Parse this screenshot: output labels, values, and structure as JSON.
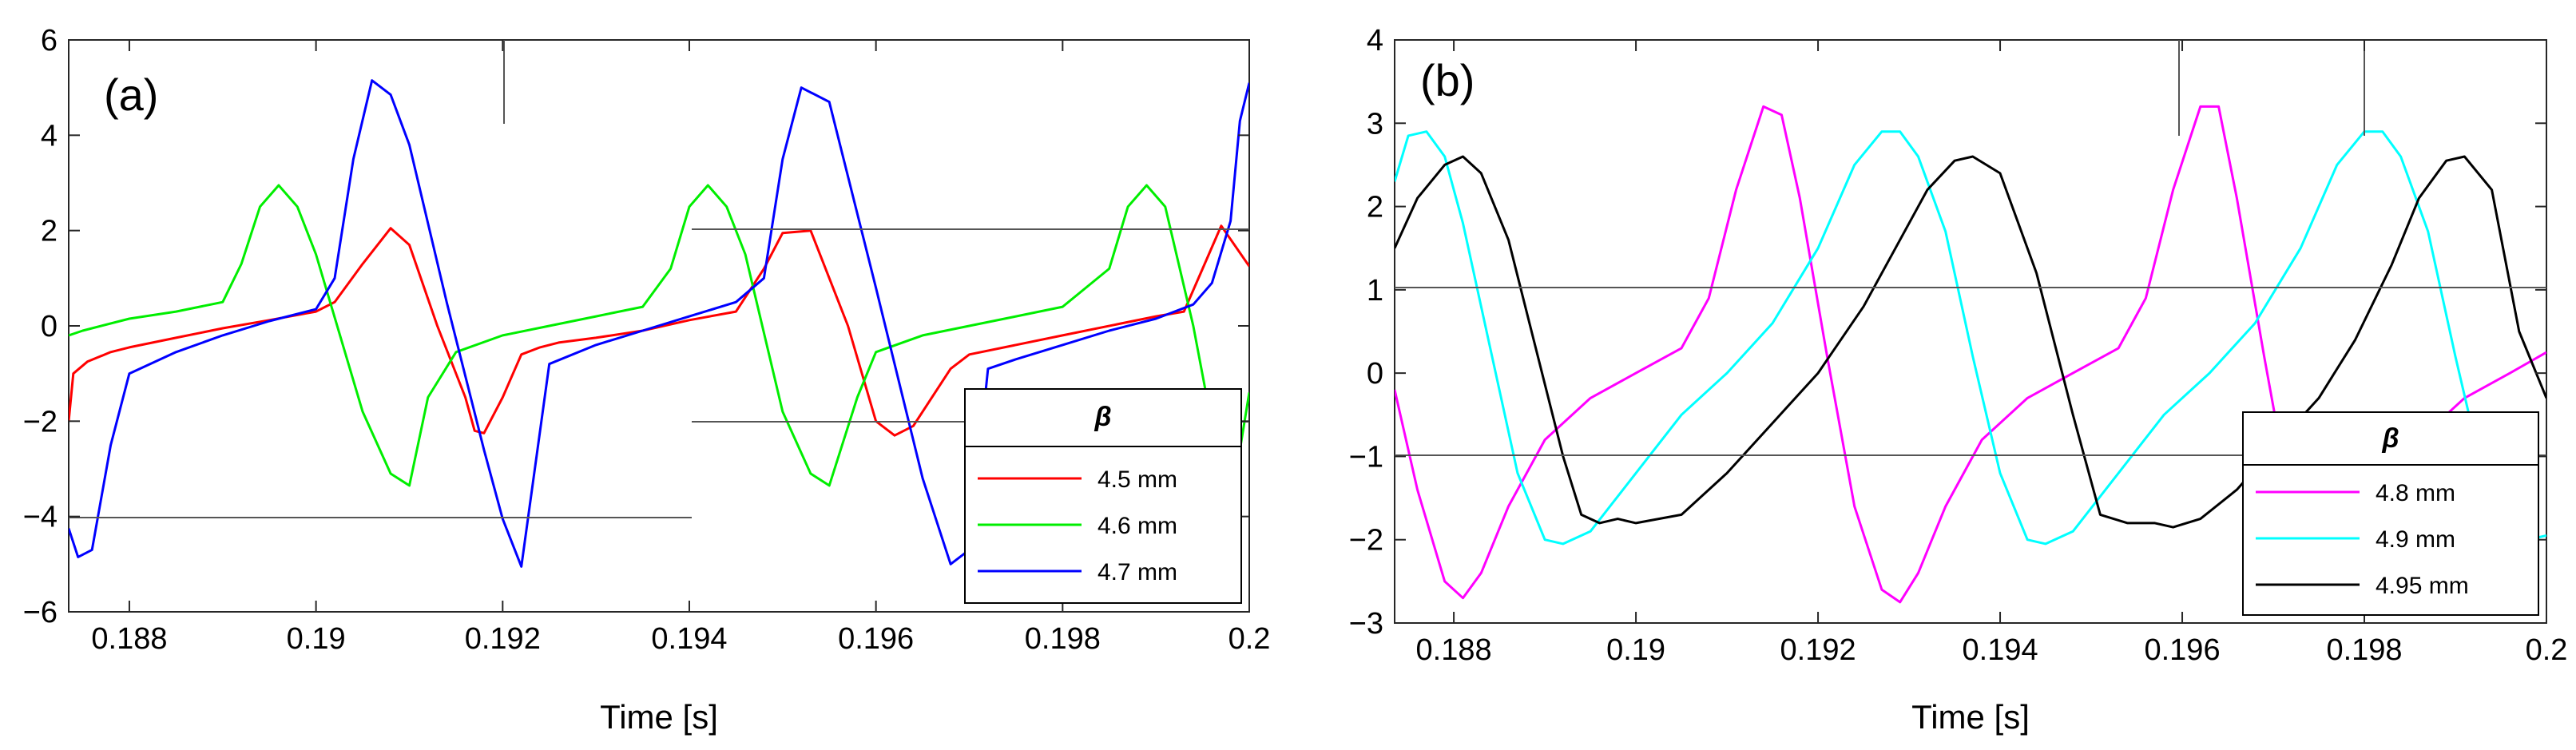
{
  "figure": {
    "description_free": true
  },
  "chart_data": [
    {
      "type": "line",
      "panel_label": "(a)",
      "xlabel": "Time [s]",
      "ylabel": "",
      "xlim": [
        0.18735,
        0.2
      ],
      "ylim": [
        -6,
        6
      ],
      "x_ticks": [
        0.188,
        0.19,
        0.192,
        0.194,
        0.196,
        0.198,
        0.2
      ],
      "x_tick_labels": [
        "0.188",
        "0.19",
        "0.192",
        "0.194",
        "0.196",
        "0.198",
        "0.2"
      ],
      "y_ticks": [
        -6,
        -4,
        -2,
        0,
        2,
        4,
        6
      ],
      "y_tick_labels": [
        "−6",
        "−4",
        "−2",
        "0",
        "2",
        "4",
        "6"
      ],
      "legend_title": "β",
      "legend_position": "bottom-right",
      "series": [
        {
          "name": "4.5 mm",
          "color": "#ff0000",
          "x": [
            0.18735,
            0.1874,
            0.18755,
            0.1878,
            0.188,
            0.1885,
            0.189,
            0.1895,
            0.19,
            0.1902,
            0.1905,
            0.1908,
            0.191,
            0.1913,
            0.1916,
            0.1917,
            0.1918,
            0.192,
            0.1922,
            0.1924,
            0.1926,
            0.193,
            0.1935,
            0.194,
            0.1945,
            0.1948,
            0.195,
            0.1953,
            0.1957,
            0.196,
            0.1962,
            0.1964,
            0.1968,
            0.197,
            0.198,
            0.199,
            0.1993,
            0.1995,
            0.1997,
            0.2
          ],
          "y": [
            -2.0,
            -1.0,
            -0.75,
            -0.55,
            -0.45,
            -0.25,
            -0.05,
            0.12,
            0.3,
            0.5,
            1.3,
            2.05,
            1.7,
            0.0,
            -1.5,
            -2.2,
            -2.25,
            -1.5,
            -0.6,
            -0.45,
            -0.35,
            -0.25,
            -0.1,
            0.12,
            0.3,
            1.2,
            1.95,
            2.0,
            0.0,
            -2.0,
            -2.3,
            -2.1,
            -0.9,
            -0.6,
            -0.2,
            0.2,
            0.3,
            1.2,
            2.1,
            1.25
          ]
        },
        {
          "name": "4.6 mm",
          "color": "#00ee00",
          "x": [
            0.18735,
            0.1875,
            0.188,
            0.1885,
            0.189,
            0.1892,
            0.1894,
            0.1896,
            0.1898,
            0.19,
            0.1905,
            0.1908,
            0.191,
            0.1912,
            0.1915,
            0.192,
            0.1925,
            0.193,
            0.1935,
            0.1938,
            0.194,
            0.1942,
            0.1944,
            0.1946,
            0.195,
            0.1953,
            0.1955,
            0.1958,
            0.196,
            0.1965,
            0.197,
            0.1975,
            0.198,
            0.1985,
            0.1987,
            0.1989,
            0.1991,
            0.1994,
            0.1997,
            0.1999,
            0.2
          ],
          "y": [
            -0.2,
            -0.1,
            0.15,
            0.3,
            0.5,
            1.3,
            2.5,
            2.95,
            2.5,
            1.5,
            -1.8,
            -3.1,
            -3.35,
            -1.5,
            -0.55,
            -0.2,
            0.0,
            0.2,
            0.4,
            1.2,
            2.5,
            2.95,
            2.5,
            1.5,
            -1.8,
            -3.1,
            -3.35,
            -1.5,
            -0.55,
            -0.2,
            0.0,
            0.2,
            0.4,
            1.2,
            2.5,
            2.95,
            2.5,
            0.0,
            -3.1,
            -2.6,
            -1.4
          ]
        },
        {
          "name": "4.7 mm",
          "color": "#0000ff",
          "x": [
            0.18735,
            0.18745,
            0.1876,
            0.1878,
            0.188,
            0.1885,
            0.189,
            0.1895,
            0.19,
            0.1902,
            0.1904,
            0.1906,
            0.1908,
            0.191,
            0.1914,
            0.1918,
            0.192,
            0.1922,
            0.1925,
            0.193,
            0.1935,
            0.194,
            0.1945,
            0.1948,
            0.195,
            0.1952,
            0.1955,
            0.196,
            0.1965,
            0.1968,
            0.197,
            0.1972,
            0.1975,
            0.198,
            0.1985,
            0.199,
            0.1994,
            0.1996,
            0.1998,
            0.1999,
            0.2
          ],
          "y": [
            -4.25,
            -4.85,
            -4.7,
            -2.5,
            -1.0,
            -0.55,
            -0.2,
            0.1,
            0.35,
            1.0,
            3.5,
            5.15,
            4.85,
            3.8,
            0.5,
            -2.6,
            -4.05,
            -5.05,
            -0.8,
            -0.4,
            -0.1,
            0.2,
            0.5,
            1.0,
            3.5,
            5.0,
            4.7,
            0.8,
            -3.2,
            -5.0,
            -4.7,
            -0.9,
            -0.7,
            -0.4,
            -0.1,
            0.15,
            0.45,
            0.9,
            2.2,
            4.3,
            5.1
          ]
        }
      ]
    },
    {
      "type": "line",
      "panel_label": "(b)",
      "xlabel": "Time [s]",
      "ylabel": "",
      "xlim": [
        0.18735,
        0.2
      ],
      "ylim": [
        -3,
        4
      ],
      "x_ticks": [
        0.188,
        0.19,
        0.192,
        0.194,
        0.196,
        0.198,
        0.2
      ],
      "x_tick_labels": [
        "0.188",
        "0.19",
        "0.192",
        "0.194",
        "0.196",
        "0.198",
        "0.2"
      ],
      "y_ticks": [
        -3,
        -2,
        -1,
        0,
        1,
        2,
        3,
        4
      ],
      "y_tick_labels": [
        "−3",
        "−2",
        "−1",
        "0",
        "1",
        "2",
        "3",
        "4"
      ],
      "legend_title": "β",
      "legend_position": "bottom-right",
      "series": [
        {
          "name": "4.8 mm",
          "color": "#ff00ff",
          "x": [
            0.18735,
            0.1876,
            0.1879,
            0.1881,
            0.1883,
            0.1886,
            0.189,
            0.1895,
            0.19,
            0.1905,
            0.1908,
            0.1911,
            0.1914,
            0.1916,
            0.1918,
            0.1921,
            0.1924,
            0.1927,
            0.1929,
            0.1931,
            0.1934,
            0.1938,
            0.1943,
            0.1948,
            0.1953,
            0.1956,
            0.1959,
            0.1962,
            0.1964,
            0.1966,
            0.1969,
            0.1972,
            0.1975,
            0.1977,
            0.1979,
            0.1982,
            0.1986,
            0.1991,
            0.1996,
            0.2
          ],
          "y": [
            -0.2,
            -1.4,
            -2.5,
            -2.7,
            -2.4,
            -1.6,
            -0.8,
            -0.3,
            0.0,
            0.3,
            0.9,
            2.2,
            3.2,
            3.1,
            2.1,
            0.2,
            -1.6,
            -2.6,
            -2.75,
            -2.4,
            -1.6,
            -0.8,
            -0.3,
            0.0,
            0.3,
            0.9,
            2.2,
            3.2,
            3.2,
            2.1,
            0.2,
            -1.6,
            -2.6,
            -2.75,
            -2.4,
            -1.6,
            -0.8,
            -0.3,
            0.0,
            0.25
          ]
        },
        {
          "name": "4.9 mm",
          "color": "#00ffff",
          "x": [
            0.18735,
            0.1875,
            0.1877,
            0.1879,
            0.1881,
            0.1884,
            0.1887,
            0.189,
            0.1892,
            0.1895,
            0.19,
            0.1905,
            0.191,
            0.1915,
            0.192,
            0.1924,
            0.1927,
            0.1929,
            0.1931,
            0.1934,
            0.1937,
            0.194,
            0.1943,
            0.1945,
            0.1948,
            0.1953,
            0.1958,
            0.1963,
            0.1968,
            0.1973,
            0.1977,
            0.198,
            0.1982,
            0.1984,
            0.1987,
            0.199,
            0.1993,
            0.1996,
            0.1998,
            0.2
          ],
          "y": [
            2.3,
            2.85,
            2.9,
            2.6,
            1.8,
            0.3,
            -1.2,
            -2.0,
            -2.05,
            -1.9,
            -1.2,
            -0.5,
            0.0,
            0.6,
            1.5,
            2.5,
            2.9,
            2.9,
            2.6,
            1.7,
            0.2,
            -1.2,
            -2.0,
            -2.05,
            -1.9,
            -1.2,
            -0.5,
            0.0,
            0.6,
            1.5,
            2.5,
            2.9,
            2.9,
            2.6,
            1.7,
            0.2,
            -1.2,
            -1.9,
            -2.0,
            -1.95
          ]
        },
        {
          "name": "4.95 mm",
          "color": "#000000",
          "x": [
            0.18735,
            0.1876,
            0.1879,
            0.1881,
            0.1883,
            0.1886,
            0.1889,
            0.1892,
            0.1894,
            0.1896,
            0.1898,
            0.19,
            0.1905,
            0.191,
            0.1915,
            0.192,
            0.1925,
            0.1929,
            0.1932,
            0.1935,
            0.1937,
            0.194,
            0.1944,
            0.1948,
            0.1951,
            0.1954,
            0.1957,
            0.1959,
            0.1962,
            0.1966,
            0.197,
            0.1975,
            0.1979,
            0.1983,
            0.1986,
            0.1989,
            0.1991,
            0.1994,
            0.1997,
            0.2
          ],
          "y": [
            1.5,
            2.1,
            2.5,
            2.6,
            2.4,
            1.6,
            0.3,
            -1.0,
            -1.7,
            -1.8,
            -1.75,
            -1.8,
            -1.7,
            -1.2,
            -0.6,
            0.0,
            0.8,
            1.6,
            2.2,
            2.55,
            2.6,
            2.4,
            1.2,
            -0.5,
            -1.7,
            -1.8,
            -1.8,
            -1.85,
            -1.75,
            -1.4,
            -0.9,
            -0.3,
            0.4,
            1.3,
            2.1,
            2.55,
            2.6,
            2.2,
            0.5,
            -0.3
          ]
        }
      ]
    }
  ]
}
